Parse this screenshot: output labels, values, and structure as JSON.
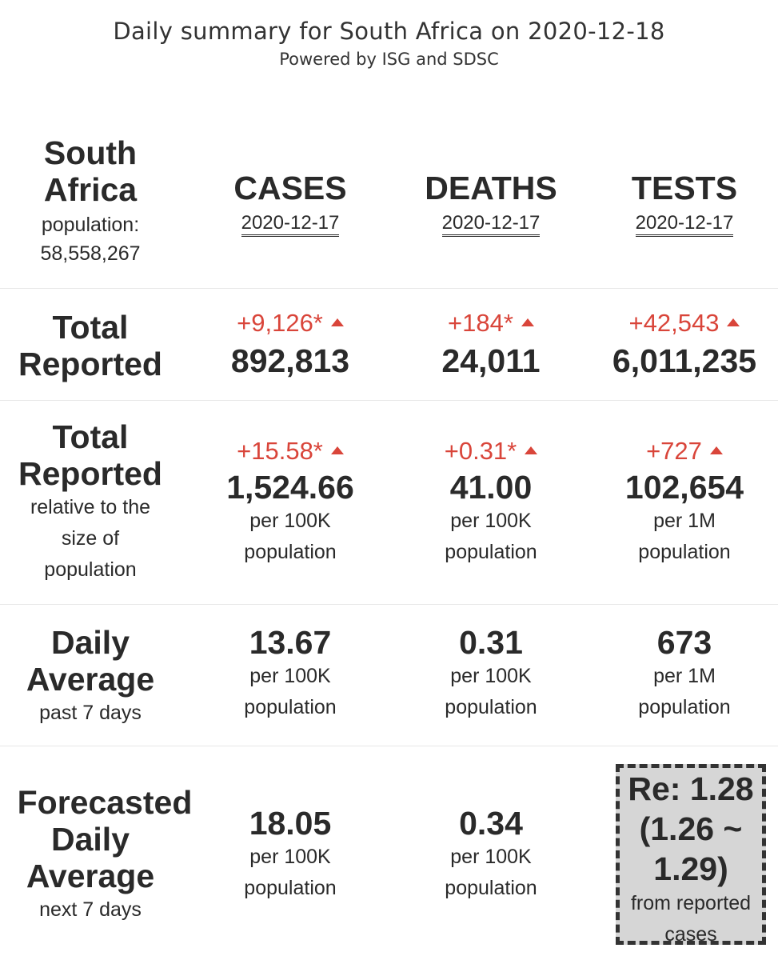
{
  "header": {
    "title": "Daily summary for South Africa on 2020-12-18",
    "subtitle": "Powered by ISG and SDSC"
  },
  "country": {
    "name_line1": "South",
    "name_line2": "Africa",
    "population_label": "population:",
    "population_value": "58,558,267"
  },
  "columns": [
    {
      "label": "CASES",
      "date": "2020-12-17"
    },
    {
      "label": "DEATHS",
      "date": "2020-12-17"
    },
    {
      "label": "TESTS",
      "date": "2020-12-17"
    }
  ],
  "rows": {
    "total": {
      "label_line1": "Total",
      "label_line2": "Reported",
      "cells": [
        {
          "delta": "+9,126*",
          "value": "892,813"
        },
        {
          "delta": "+184*",
          "value": "24,011"
        },
        {
          "delta": "+42,543",
          "value": "6,011,235"
        }
      ]
    },
    "relative": {
      "label_line1": "Total",
      "label_line2": "Reported",
      "note_line1": "relative to the",
      "note_line2": "size of",
      "note_line3": "population",
      "cells": [
        {
          "delta": "+15.58*",
          "value": "1,524.66",
          "unit_line1": "per 100K",
          "unit_line2": "population"
        },
        {
          "delta": "+0.31*",
          "value": "41.00",
          "unit_line1": "per 100K",
          "unit_line2": "population"
        },
        {
          "delta": "+727",
          "value": "102,654",
          "unit_line1": "per 1M",
          "unit_line2": "population"
        }
      ]
    },
    "daily": {
      "label_line1": "Daily",
      "label_line2": "Average",
      "note": "past 7 days",
      "cells": [
        {
          "value": "13.67",
          "unit_line1": "per 100K",
          "unit_line2": "population"
        },
        {
          "value": "0.31",
          "unit_line1": "per 100K",
          "unit_line2": "population"
        },
        {
          "value": "673",
          "unit_line1": "per 1M",
          "unit_line2": "population"
        }
      ]
    },
    "forecast": {
      "label_line1": "Forecasted",
      "label_line2": "Daily",
      "label_line3": "Average",
      "note": "next 7 days",
      "cells": [
        {
          "value": "18.05",
          "unit_line1": "per 100K",
          "unit_line2": "population"
        },
        {
          "value": "0.34",
          "unit_line1": "per 100K",
          "unit_line2": "population"
        }
      ],
      "re": {
        "line1": "Re: 1.28",
        "line2": "(1.26 ~",
        "line3": "1.29)",
        "note_line1": "from reported",
        "note_line2": "cases"
      }
    }
  },
  "colors": {
    "increase": "#d9453a",
    "text": "#2a2a2a",
    "re_box_bg": "#d6d6d6"
  }
}
